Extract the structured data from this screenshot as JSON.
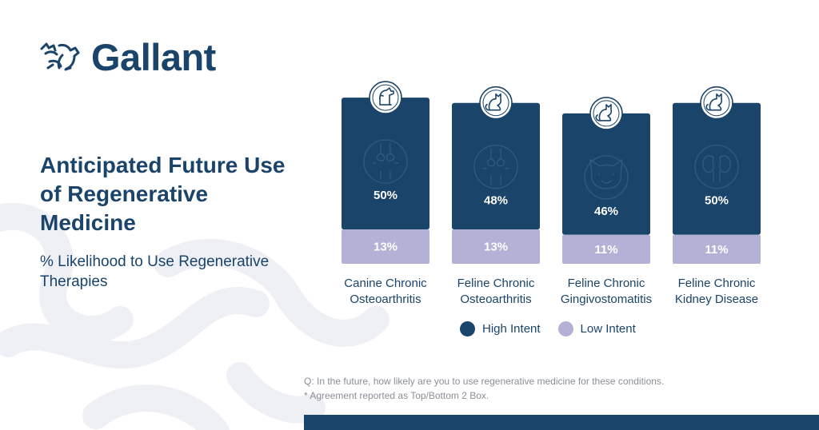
{
  "brand": {
    "name": "Gallant",
    "mark_icon": "dog-cat-outline-icon"
  },
  "heading": {
    "title": "Anticipated Future Use of Regenerative Medicine",
    "subtitle": "% Likelihood to Use Regenerative Therapies"
  },
  "colors": {
    "navy": "#1a4469",
    "lavender": "#b3b1d5",
    "background_swirl": "#eef0f5",
    "footnote": "#8a8f97"
  },
  "chart_data": {
    "type": "bar",
    "stacked": true,
    "categories": [
      "Canine Chronic Osteoarthritis",
      "Feline Chronic Osteoarthritis",
      "Feline Chronic Gingivostomatitis",
      "Feline Chronic Kidney Disease"
    ],
    "category_lines": [
      [
        "Canine Chronic",
        "Osteoarthritis"
      ],
      [
        "Feline Chronic",
        "Osteoarthritis"
      ],
      [
        "Feline Chronic",
        "Gingivostomatitis"
      ],
      [
        "Feline Chronic",
        "Kidney Disease"
      ]
    ],
    "category_icons": [
      "dog-icon",
      "cat-icon",
      "cat-icon",
      "cat-icon"
    ],
    "condition_icons": [
      "joint-icon",
      "joint-icon",
      "cat-face-mouth-icon",
      "kidney-icon"
    ],
    "series": [
      {
        "name": "High Intent",
        "values": [
          50,
          48,
          46,
          50
        ],
        "color": "#1a4469"
      },
      {
        "name": "Low Intent",
        "values": [
          13,
          13,
          11,
          11
        ],
        "color": "#b3b1d5"
      }
    ],
    "data_labels": [
      [
        "50%",
        "48%",
        "46%",
        "50%"
      ],
      [
        "13%",
        "13%",
        "11%",
        "11%"
      ]
    ],
    "legend": "bottom"
  },
  "footnotes": {
    "question": "Q: In the future, how likely are you to use regenerative medicine for these conditions.",
    "note": "* Agreement reported as Top/Bottom 2 Box."
  }
}
